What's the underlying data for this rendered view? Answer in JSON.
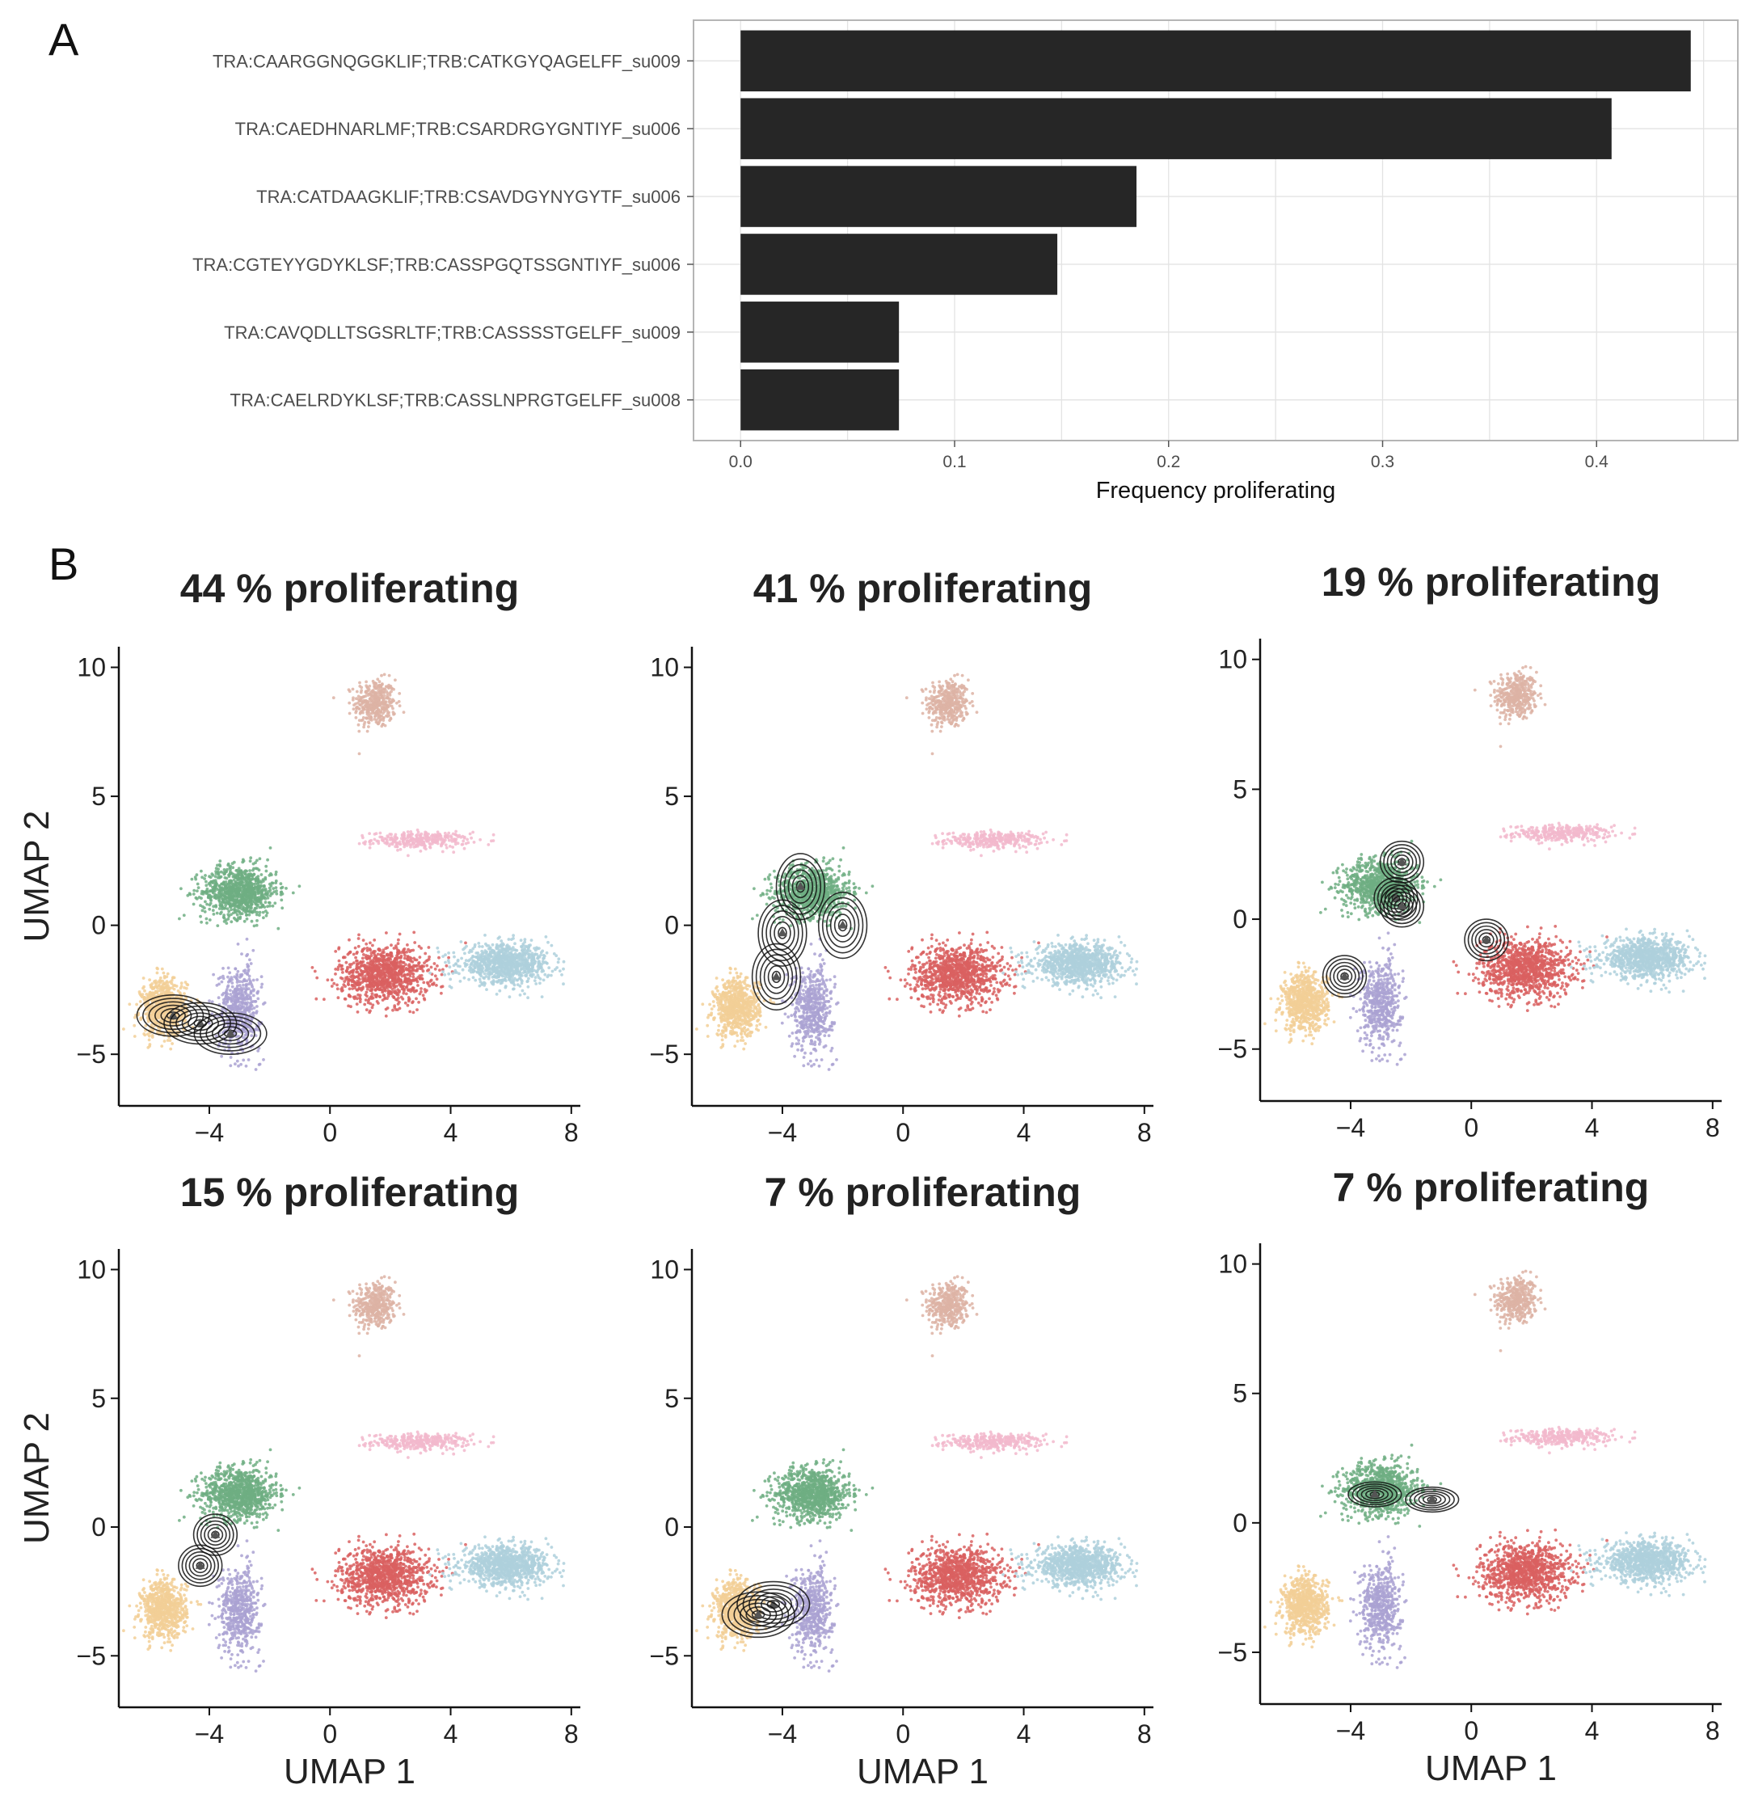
{
  "panel_labels": {
    "a": "A",
    "b": "B"
  },
  "colors": {
    "bar": "#262626",
    "grid": "#e3e3e3",
    "frame": "#b5b5b5",
    "contour": "#111111",
    "cluster_colors": [
      "#ddb3a4",
      "#f2b8cd",
      "#6fae82",
      "#d96060",
      "#aed0dc",
      "#f2cf96",
      "#aaa2d2"
    ]
  },
  "chart_data": [
    {
      "type": "bar",
      "orientation": "horizontal",
      "panel": "A",
      "categories": [
        "TRA:CAARGGNQGGKLIF;TRB:CATKGYQAGELFF_su009",
        "TRA:CAEDHNARLMF;TRB:CSARDRGYGNTIYF_su006",
        "TRA:CATDAAGKLIF;TRB:CSAVDGYNYGYTF_su006",
        "TRA:CGTEYYGDYKLSF;TRB:CASSPGQTSSGNTIYF_su006",
        "TRA:CAVQDLLTSGSRLTF;TRB:CASSSSTGELFF_su009",
        "TRA:CAELRDYKLSF;TRB:CASSLNPRGTGELFF_su008"
      ],
      "values": [
        0.444,
        0.407,
        0.185,
        0.148,
        0.074,
        0.074
      ],
      "xlabel": "Frequency proliferating",
      "ylabel": "",
      "xlim": [
        -0.022,
        0.466
      ],
      "xticks": [
        0.0,
        0.1,
        0.2,
        0.3,
        0.4
      ],
      "xtick_labels": [
        "0.0",
        "0.1",
        "0.2",
        "0.3",
        "0.4"
      ],
      "grid": true
    },
    {
      "type": "scatter",
      "panel": "B",
      "subplots": [
        {
          "title": "44 % proliferating",
          "contour_centers": [
            [
              -5.2,
              -3.5
            ],
            [
              -4.3,
              -3.8
            ],
            [
              -3.3,
              -4.2
            ]
          ],
          "contour_spread": [
            0.75,
            0.5
          ]
        },
        {
          "title": "41 % proliferating",
          "contour_centers": [
            [
              -4.2,
              -2.0
            ],
            [
              -4.0,
              -0.3
            ],
            [
              -3.4,
              1.5
            ],
            [
              -2.0,
              0.0
            ]
          ],
          "contour_spread": [
            0.5,
            0.8
          ]
        },
        {
          "title": "19 % proliferating",
          "contour_centers": [
            [
              -4.2,
              -2.2
            ],
            [
              -2.3,
              2.2
            ],
            [
              -2.5,
              0.8
            ],
            [
              -2.3,
              0.5
            ],
            [
              0.5,
              -0.8
            ]
          ],
          "contour_spread": [
            0.45,
            0.5
          ]
        },
        {
          "title": "15 % proliferating",
          "contour_centers": [
            [
              -4.3,
              -1.5
            ],
            [
              -3.8,
              -0.3
            ]
          ],
          "contour_spread": [
            0.45,
            0.5
          ]
        },
        {
          "title": "7 % proliferating",
          "contour_centers": [
            [
              -4.3,
              -3.0
            ],
            [
              -4.8,
              -3.4
            ]
          ],
          "contour_spread": [
            0.75,
            0.55
          ]
        },
        {
          "title": "7 % proliferating",
          "contour_centers": [
            [
              -3.2,
              1.1
            ],
            [
              -1.3,
              0.9
            ]
          ],
          "contour_spread": [
            0.55,
            0.3
          ]
        }
      ],
      "clusters": [
        {
          "center": [
            1.5,
            8.6
          ],
          "spread": [
            0.55,
            0.75
          ]
        },
        {
          "center": [
            3.0,
            3.3
          ],
          "spread": [
            1.3,
            0.25
          ]
        },
        {
          "center": [
            -3.0,
            1.3
          ],
          "spread": [
            1.0,
            0.8
          ]
        },
        {
          "center": [
            1.8,
            -1.9
          ],
          "spread": [
            1.2,
            0.9
          ]
        },
        {
          "center": [
            5.8,
            -1.5
          ],
          "spread": [
            1.2,
            0.6
          ]
        },
        {
          "center": [
            -5.5,
            -3.2
          ],
          "spread": [
            0.6,
            0.9
          ]
        },
        {
          "center": [
            -3.0,
            -3.2
          ],
          "spread": [
            0.55,
            1.3
          ]
        }
      ],
      "xlabel": "UMAP 1",
      "ylabel": "UMAP 2",
      "xlim": [
        -7.0,
        8.3
      ],
      "ylim": [
        -7.0,
        10.8
      ],
      "xticks": [
        -4,
        0,
        4,
        8
      ],
      "xtick_labels": [
        "−4",
        "0",
        "4",
        "8"
      ],
      "yticks": [
        -5,
        0,
        5,
        10
      ],
      "ytick_labels": [
        "−5",
        "0",
        "5",
        "10"
      ],
      "grid": false
    }
  ]
}
